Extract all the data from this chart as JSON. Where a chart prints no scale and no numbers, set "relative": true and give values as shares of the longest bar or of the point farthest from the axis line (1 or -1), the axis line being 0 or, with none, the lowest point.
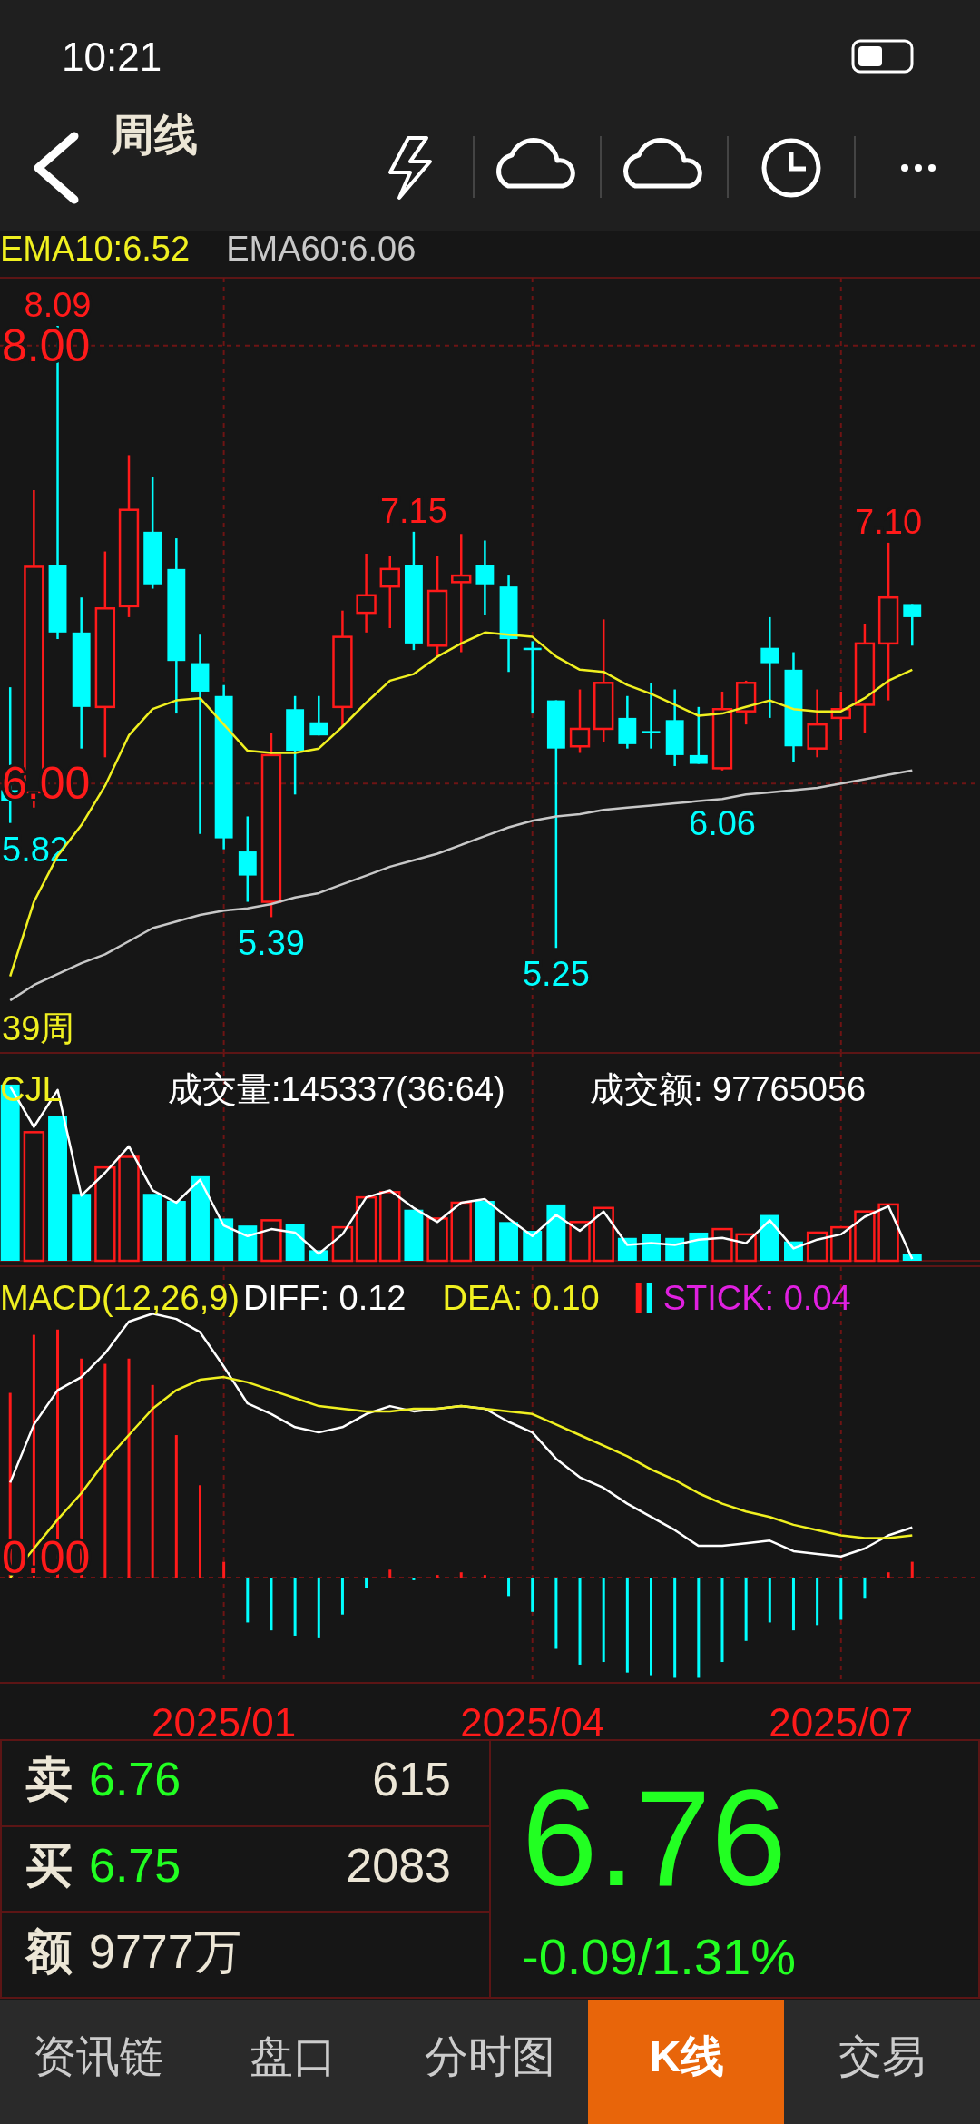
{
  "chart_data": [
    {
      "type": "other",
      "title": "周线",
      "annotations": [
        "10:21"
      ]
    },
    {
      "type": "candlestick",
      "x": [
        "2024-11-01",
        "2024-11-08",
        "2024-11-15",
        "2024-11-22",
        "2024-11-29",
        "2024-12-06",
        "2024-12-13",
        "2024-12-20",
        "2024-12-27",
        "2025-01-03",
        "2025-01-10",
        "2025-01-17",
        "2025-01-24",
        "2025-01-31",
        "2025-02-07",
        "2025-02-14",
        "2025-02-21",
        "2025-02-28",
        "2025-03-07",
        "2025-03-14",
        "2025-03-21",
        "2025-03-28",
        "2025-04-04",
        "2025-04-11",
        "2025-04-18",
        "2025-04-25",
        "2025-05-02",
        "2025-05-09",
        "2025-05-16",
        "2025-05-23",
        "2025-05-30",
        "2025-06-06",
        "2025-06-13",
        "2025-06-20",
        "2025-06-27",
        "2025-07-04",
        "2025-07-11",
        "2025-07-18",
        "2025-07-25"
      ],
      "ohlc": [
        [
          5.97,
          6.44,
          5.82,
          5.92
        ],
        [
          5.96,
          7.34,
          5.89,
          6.99
        ],
        [
          7.0,
          8.09,
          6.66,
          6.69
        ],
        [
          6.69,
          6.85,
          6.16,
          6.35
        ],
        [
          6.35,
          7.06,
          6.12,
          6.8
        ],
        [
          6.81,
          7.5,
          6.76,
          7.25
        ],
        [
          7.15,
          7.4,
          6.89,
          6.91
        ],
        [
          6.98,
          7.12,
          6.32,
          6.56
        ],
        [
          6.55,
          6.68,
          5.77,
          6.42
        ],
        [
          6.4,
          6.45,
          5.7,
          5.75
        ],
        [
          5.69,
          5.85,
          5.46,
          5.58
        ],
        [
          5.46,
          6.23,
          5.39,
          6.13
        ],
        [
          6.34,
          6.4,
          5.95,
          6.15
        ],
        [
          6.28,
          6.4,
          6.22,
          6.22
        ],
        [
          6.35,
          6.79,
          6.26,
          6.67
        ],
        [
          6.78,
          7.05,
          6.69,
          6.86
        ],
        [
          6.9,
          7.04,
          6.71,
          6.98
        ],
        [
          7.0,
          7.15,
          6.61,
          6.64
        ],
        [
          6.63,
          7.04,
          6.58,
          6.88
        ],
        [
          6.92,
          7.14,
          6.6,
          6.95
        ],
        [
          7.0,
          7.11,
          6.77,
          6.91
        ],
        [
          6.9,
          6.95,
          6.51,
          6.66
        ],
        [
          6.62,
          6.65,
          6.32,
          6.61
        ],
        [
          6.38,
          6.38,
          5.25,
          6.16
        ],
        [
          6.17,
          6.43,
          6.14,
          6.25
        ],
        [
          6.25,
          6.75,
          6.19,
          6.46
        ],
        [
          6.3,
          6.4,
          6.16,
          6.18
        ],
        [
          6.24,
          6.46,
          6.16,
          6.23
        ],
        [
          6.29,
          6.43,
          6.08,
          6.13
        ],
        [
          6.13,
          6.35,
          6.09,
          6.09
        ],
        [
          6.07,
          6.42,
          6.06,
          6.34
        ],
        [
          6.33,
          6.47,
          6.27,
          6.46
        ],
        [
          6.62,
          6.76,
          6.3,
          6.55
        ],
        [
          6.52,
          6.6,
          6.1,
          6.17
        ],
        [
          6.16,
          6.43,
          6.12,
          6.27
        ],
        [
          6.3,
          6.42,
          6.2,
          6.34
        ],
        [
          6.36,
          6.73,
          6.23,
          6.64
        ],
        [
          6.64,
          7.1,
          6.38,
          6.85
        ],
        [
          6.82,
          6.82,
          6.63,
          6.76
        ]
      ],
      "series": [
        {
          "name": "EMA10:6.52",
          "type": "line",
          "color": "#f0f020",
          "values": [
            5.12,
            5.46,
            5.67,
            5.81,
            5.99,
            6.22,
            6.34,
            6.38,
            6.39,
            6.27,
            6.15,
            6.14,
            6.14,
            6.16,
            6.26,
            6.37,
            6.47,
            6.5,
            6.58,
            6.64,
            6.69,
            6.68,
            6.67,
            6.58,
            6.52,
            6.51,
            6.45,
            6.41,
            6.36,
            6.31,
            6.32,
            6.35,
            6.38,
            6.34,
            6.33,
            6.33,
            6.39,
            6.47,
            6.52
          ]
        },
        {
          "name": "EMA60:6.06",
          "type": "line",
          "color": "#c8c8c8",
          "values": [
            5.01,
            5.08,
            5.13,
            5.18,
            5.22,
            5.28,
            5.34,
            5.37,
            5.4,
            5.42,
            5.43,
            5.45,
            5.48,
            5.5,
            5.54,
            5.58,
            5.62,
            5.65,
            5.68,
            5.72,
            5.76,
            5.8,
            5.83,
            5.85,
            5.86,
            5.88,
            5.89,
            5.9,
            5.91,
            5.92,
            5.93,
            5.95,
            5.96,
            5.97,
            5.98,
            6.0,
            6.02,
            6.04,
            6.06
          ]
        }
      ],
      "xlim": [
        "2024-10-29",
        "2025-08-14"
      ],
      "xticks": [
        {
          "value": "2025-01-03",
          "label": null
        },
        {
          "value": "2025-04-04",
          "label": null
        },
        {
          "value": "2025-07-04",
          "label": null
        }
      ],
      "ylim": [
        4.77,
        8.31
      ],
      "yticks": [
        {
          "value": 8,
          "label": "8.00"
        },
        {
          "value": 6,
          "label": "6.00"
        }
      ],
      "grid": true,
      "legend": "top left",
      "tick_labels": "y",
      "annotations": [
        {
          "text": "8.09",
          "x": "2024-11-15",
          "y": 8.09
        },
        {
          "text": "7.15",
          "x": "2025-02-28",
          "y": 7.15
        },
        {
          "text": "7.10",
          "x": "2025-07-18",
          "y": 7.1
        },
        {
          "text": "5.82",
          "x": "2024-11-01",
          "y": 5.82
        },
        {
          "text": "5.39",
          "x": "2025-01-17",
          "y": 5.39
        },
        {
          "text": "5.25",
          "x": "2025-04-11",
          "y": 5.25
        },
        {
          "text": "6.06",
          "x": "2025-05-30",
          "y": 6.06
        },
        "39周"
      ]
    },
    {
      "type": "bar",
      "title": "CJL",
      "relative": true,
      "x": [
        "2024-11-01",
        "2024-11-08",
        "2024-11-15",
        "2024-11-22",
        "2024-11-29",
        "2024-12-06",
        "2024-12-13",
        "2024-12-20",
        "2024-12-27",
        "2025-01-03",
        "2025-01-10",
        "2025-01-17",
        "2025-01-24",
        "2025-01-31",
        "2025-02-07",
        "2025-02-14",
        "2025-02-21",
        "2025-02-28",
        "2025-03-07",
        "2025-03-14",
        "2025-03-21",
        "2025-03-28",
        "2025-04-04",
        "2025-04-11",
        "2025-04-18",
        "2025-04-25",
        "2025-05-02",
        "2025-05-09",
        "2025-05-16",
        "2025-05-23",
        "2025-05-30",
        "2025-06-06",
        "2025-06-13",
        "2025-06-20",
        "2025-06-27",
        "2025-07-04",
        "2025-07-11",
        "2025-07-18",
        "2025-07-25"
      ],
      "series": [
        {
          "type": "bar",
          "colors": [
            "#00ffff",
            "#ff1a1a",
            "#00ffff",
            "#00ffff",
            "#ff1a1a",
            "#ff1a1a",
            "#00ffff",
            "#00ffff",
            "#00ffff",
            "#00ffff",
            "#00ffff",
            "#ff1a1a",
            "#00ffff",
            "#00ffff",
            "#ff1a1a",
            "#ff1a1a",
            "#ff1a1a",
            "#00ffff",
            "#ff1a1a",
            "#ff1a1a",
            "#00ffff",
            "#00ffff",
            "#00ffff",
            "#00ffff",
            "#ff1a1a",
            "#ff1a1a",
            "#00ffff",
            "#00ffff",
            "#00ffff",
            "#00ffff",
            "#ff1a1a",
            "#ff1a1a",
            "#00ffff",
            "#00ffff",
            "#ff1a1a",
            "#ff1a1a",
            "#ff1a1a",
            "#ff1a1a",
            "#00ffff"
          ],
          "values": [
            1.0,
            0.73,
            0.82,
            0.38,
            0.53,
            0.59,
            0.38,
            0.34,
            0.48,
            0.24,
            0.2,
            0.23,
            0.21,
            0.06,
            0.19,
            0.36,
            0.39,
            0.29,
            0.24,
            0.33,
            0.34,
            0.22,
            0.17,
            0.32,
            0.22,
            0.3,
            0.13,
            0.15,
            0.13,
            0.16,
            0.18,
            0.15,
            0.26,
            0.11,
            0.16,
            0.19,
            0.28,
            0.32,
            0.04
          ]
        },
        {
          "type": "line",
          "color": "#ffffff",
          "values": [
            0.99,
            0.76,
            0.97,
            0.37,
            0.5,
            0.65,
            0.4,
            0.33,
            0.46,
            0.2,
            0.14,
            0.18,
            0.16,
            0.04,
            0.15,
            0.36,
            0.4,
            0.3,
            0.22,
            0.33,
            0.35,
            0.24,
            0.14,
            0.26,
            0.17,
            0.28,
            0.09,
            0.1,
            0.09,
            0.12,
            0.13,
            0.1,
            0.23,
            0.07,
            0.12,
            0.15,
            0.25,
            0.31,
            0.01
          ]
        }
      ],
      "xlim": [
        "2024-10-29",
        "2025-08-14"
      ],
      "xticks": [
        {
          "value": "2025-01-03",
          "label": null
        },
        {
          "value": "2025-04-04",
          "label": null
        },
        {
          "value": "2025-07-04",
          "label": null
        }
      ],
      "grid": "x",
      "tick_labels": false,
      "annotations": [
        "成交量:145337(36:64)",
        "成交额: 97765056"
      ]
    },
    {
      "type": "bar",
      "title": "MACD(12,26,9)",
      "relative": true,
      "x": [
        "2024-11-01",
        "2024-11-08",
        "2024-11-15",
        "2024-11-22",
        "2024-11-29",
        "2024-12-06",
        "2024-12-13",
        "2024-12-20",
        "2024-12-27",
        "2025-01-03",
        "2025-01-10",
        "2025-01-17",
        "2025-01-24",
        "2025-01-31",
        "2025-02-07",
        "2025-02-14",
        "2025-02-21",
        "2025-02-28",
        "2025-03-07",
        "2025-03-14",
        "2025-03-21",
        "2025-03-28",
        "2025-04-04",
        "2025-04-11",
        "2025-04-18",
        "2025-04-25",
        "2025-05-02",
        "2025-05-09",
        "2025-05-16",
        "2025-05-23",
        "2025-05-30",
        "2025-06-06",
        "2025-06-13",
        "2025-06-20",
        "2025-06-27",
        "2025-07-04",
        "2025-07-11",
        "2025-07-18",
        "2025-07-25"
      ],
      "series": [
        {
          "name": "DIFF: 0.12",
          "type": "line",
          "color": "#ffffff",
          "values": [
            0.36,
            0.58,
            0.71,
            0.76,
            0.85,
            0.97,
            1.0,
            0.98,
            0.93,
            0.8,
            0.66,
            0.62,
            0.57,
            0.55,
            0.57,
            0.62,
            0.65,
            0.63,
            0.64,
            0.65,
            0.64,
            0.59,
            0.55,
            0.45,
            0.38,
            0.34,
            0.28,
            0.23,
            0.18,
            0.12,
            0.12,
            0.13,
            0.14,
            0.1,
            0.09,
            0.08,
            0.11,
            0.16,
            0.19
          ]
        },
        {
          "name": "DEA: 0.10",
          "type": "line",
          "color": "#f0f020",
          "values": [
            0.0,
            0.11,
            0.22,
            0.32,
            0.44,
            0.54,
            0.64,
            0.71,
            0.75,
            0.76,
            0.74,
            0.71,
            0.68,
            0.65,
            0.64,
            0.63,
            0.63,
            0.64,
            0.64,
            0.65,
            0.64,
            0.63,
            0.62,
            0.58,
            0.54,
            0.5,
            0.46,
            0.41,
            0.37,
            0.32,
            0.28,
            0.25,
            0.23,
            0.2,
            0.18,
            0.16,
            0.15,
            0.15,
            0.16
          ]
        },
        {
          "name": "STICK: 0.04",
          "type": "bar",
          "color": "#e020e0",
          "colors": [
            "#ff1a1a",
            "#ff1a1a",
            "#ff1a1a",
            "#ff1a1a",
            "#ff1a1a",
            "#ff1a1a",
            "#ff1a1a",
            "#ff1a1a",
            "#ff1a1a",
            "#ff1a1a",
            "#00ffff",
            "#00ffff",
            "#00ffff",
            "#00ffff",
            "#00ffff",
            "#00ffff",
            "#ff1a1a",
            "#00ffff",
            "#ff1a1a",
            "#ff1a1a",
            "#ff1a1a",
            "#00ffff",
            "#00ffff",
            "#00ffff",
            "#00ffff",
            "#00ffff",
            "#00ffff",
            "#00ffff",
            "#00ffff",
            "#00ffff",
            "#00ffff",
            "#00ffff",
            "#00ffff",
            "#00ffff",
            "#00ffff",
            "#00ffff",
            "#00ffff",
            "#ff1a1a",
            "#ff1a1a"
          ],
          "values": [
            0.7,
            0.92,
            0.94,
            0.83,
            0.81,
            0.83,
            0.73,
            0.54,
            0.35,
            0.06,
            -0.17,
            -0.2,
            -0.22,
            -0.23,
            -0.14,
            -0.04,
            0.03,
            -0.01,
            0.01,
            0.02,
            0.01,
            -0.07,
            -0.13,
            -0.27,
            -0.33,
            -0.32,
            -0.36,
            -0.37,
            -0.38,
            -0.38,
            -0.32,
            -0.24,
            -0.17,
            -0.2,
            -0.18,
            -0.16,
            -0.08,
            0.02,
            0.06
          ]
        }
      ],
      "xlim": [
        "2024-10-29",
        "2025-08-14"
      ],
      "xticks": [
        {
          "value": "2025-01-03",
          "label": "2025/01"
        },
        {
          "value": "2025-04-04",
          "label": "2025/04"
        },
        {
          "value": "2025-07-04",
          "label": "2025/07"
        }
      ],
      "grid": "x",
      "tick_labels": "x",
      "legend": "top",
      "annotations": [
        "0.00"
      ]
    },
    {
      "type": "other",
      "annotations": [
        "卖",
        "6.76",
        "615",
        "买",
        "6.75",
        "2083",
        "额",
        "9777万",
        "6.76",
        "-0.09/1.31%",
        "资讯链",
        "盘口",
        "分时图",
        "K线",
        "交易"
      ]
    }
  ]
}
